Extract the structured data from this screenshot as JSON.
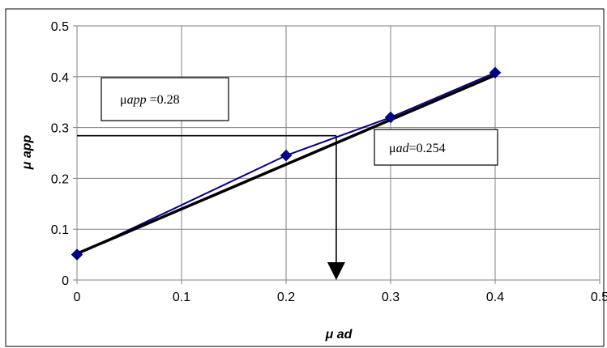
{
  "chart_data": {
    "type": "scatter",
    "title": "",
    "xlabel": "μ ad",
    "ylabel": "μ app",
    "xlim": [
      0,
      0.5
    ],
    "ylim": [
      0,
      0.5
    ],
    "x_ticks": [
      "0",
      "0.1",
      "0.2",
      "0.3",
      "0.4",
      "0.5"
    ],
    "y_ticks": [
      "0",
      "0.1",
      "0.2",
      "0.3",
      "0.4",
      "0.5"
    ],
    "grid": true,
    "legend": "none",
    "series": [
      {
        "x": [
          0,
          0.2,
          0.3,
          0.4
        ],
        "y": [
          0.05,
          0.245,
          0.32,
          0.408
        ],
        "marker": "diamond",
        "color": "#00008b"
      }
    ],
    "trendline": {
      "x": [
        0,
        0.4
      ],
      "y": [
        0.052,
        0.403
      ],
      "color": "#000000"
    },
    "annotations": {
      "mu_app_box": {
        "symbol": "μ",
        "var": "app",
        "rest": " =0.28"
      },
      "mu_ad_box": {
        "symbol": "μ",
        "var": "ad",
        "rest": "=0.254"
      }
    },
    "guides": {
      "x_value": 0.248,
      "y_value": 0.284
    }
  }
}
